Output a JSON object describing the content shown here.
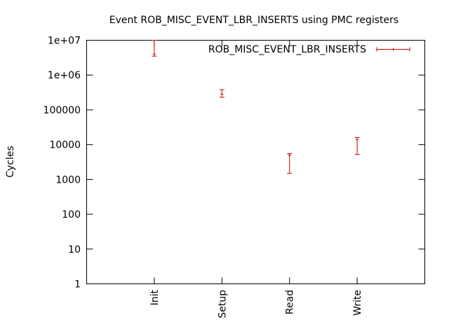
{
  "chart_data": {
    "type": "errorbar",
    "title": "Event ROB_MISC_EVENT_LBR_INSERTS using PMC registers",
    "xlabel": "",
    "ylabel": "Cycles",
    "y_scale": "log",
    "ylim": [
      1,
      10000000
    ],
    "y_ticks": [
      {
        "value": 1,
        "label": "1"
      },
      {
        "value": 10,
        "label": "10"
      },
      {
        "value": 100,
        "label": "100"
      },
      {
        "value": 1000,
        "label": "1000"
      },
      {
        "value": 10000,
        "label": "10000"
      },
      {
        "value": 100000,
        "label": "100000"
      },
      {
        "value": 1000000,
        "label": "1e+06"
      },
      {
        "value": 10000000,
        "label": "1e+07"
      }
    ],
    "categories": [
      "Init",
      "Setup",
      "Read",
      "Write"
    ],
    "grid": false,
    "legend_position": "top-right",
    "series": [
      {
        "name": "ROB_MISC_EVENT_LBR_INSERTS",
        "color": "#cc0000",
        "points": [
          {
            "category": "Init",
            "value": 4000000,
            "low": 3500000,
            "high": 10000000
          },
          {
            "category": "Setup",
            "value": 280000,
            "low": 230000,
            "high": 380000
          },
          {
            "category": "Read",
            "value": 5000,
            "low": 1500,
            "high": 5500
          },
          {
            "category": "Write",
            "value": 14000,
            "low": 5200,
            "high": 16000
          }
        ]
      }
    ]
  }
}
